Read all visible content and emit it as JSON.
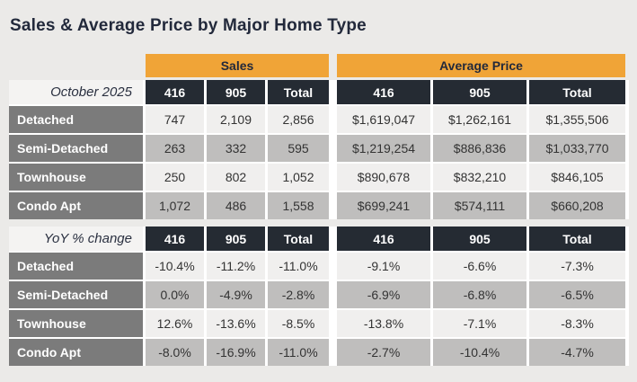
{
  "title": "Sales & Average Price by Major Home Type",
  "colors": {
    "accent_orange": "#F0A437",
    "header_dark": "#252B33",
    "row_label_gray": "#7B7B7B",
    "row_light": "#F0EFEE",
    "row_shaded": "#BFBEBD",
    "page_background": "#EBEAE8",
    "title_navy": "#22293B"
  },
  "chart_data": {
    "type": "table",
    "title": "Sales & Average Price by Major Home Type",
    "column_groups": [
      {
        "label": "Sales",
        "span": 3
      },
      {
        "label": "Average Price",
        "span": 3
      }
    ],
    "columns": [
      "416",
      "905",
      "Total",
      "416",
      "905",
      "Total"
    ],
    "sections": [
      {
        "name": "October 2025",
        "rows": [
          {
            "label": "Detached",
            "cells": [
              "747",
              "2,109",
              "2,856",
              "$1,619,047",
              "$1,262,161",
              "$1,355,506"
            ]
          },
          {
            "label": "Semi-Detached",
            "cells": [
              "263",
              "332",
              "595",
              "$1,219,254",
              "$886,836",
              "$1,033,770"
            ]
          },
          {
            "label": "Townhouse",
            "cells": [
              "250",
              "802",
              "1,052",
              "$890,678",
              "$832,210",
              "$846,105"
            ]
          },
          {
            "label": "Condo Apt",
            "cells": [
              "1,072",
              "486",
              "1,558",
              "$699,241",
              "$574,111",
              "$660,208"
            ]
          }
        ]
      },
      {
        "name": "YoY % change",
        "rows": [
          {
            "label": "Detached",
            "cells": [
              "-10.4%",
              "-11.2%",
              "-11.0%",
              "-9.1%",
              "-6.6%",
              "-7.3%"
            ]
          },
          {
            "label": "Semi-Detached",
            "cells": [
              "0.0%",
              "-4.9%",
              "-2.8%",
              "-6.9%",
              "-6.8%",
              "-6.5%"
            ]
          },
          {
            "label": "Townhouse",
            "cells": [
              "12.6%",
              "-13.6%",
              "-8.5%",
              "-13.8%",
              "-7.1%",
              "-8.3%"
            ]
          },
          {
            "label": "Condo Apt",
            "cells": [
              "-8.0%",
              "-16.9%",
              "-11.0%",
              "-2.7%",
              "-10.4%",
              "-4.7%"
            ]
          }
        ]
      }
    ]
  }
}
